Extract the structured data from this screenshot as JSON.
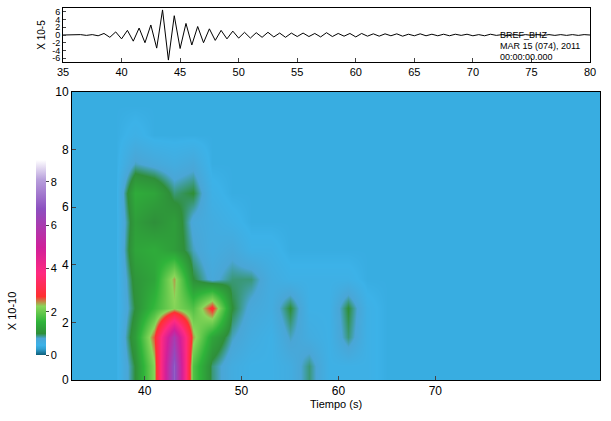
{
  "chart_data": [
    {
      "type": "line",
      "x": [
        35,
        35.5,
        36,
        36.5,
        37,
        37.5,
        38,
        38.5,
        39,
        39.5,
        40,
        40.5,
        41,
        41.5,
        42,
        42.5,
        43,
        43.5,
        44,
        44.5,
        45,
        45.5,
        46,
        46.5,
        47,
        47.5,
        48,
        48.5,
        49,
        49.5,
        50,
        50.5,
        51,
        51.5,
        52,
        52.5,
        53,
        53.5,
        54,
        54.5,
        55,
        55.5,
        56,
        56.5,
        57,
        57.5,
        58,
        58.5,
        59,
        59.5,
        60,
        60.5,
        61,
        61.5,
        62,
        62.5,
        63,
        63.5,
        64,
        64.5,
        65,
        65.5,
        66,
        66.5,
        67,
        67.5,
        68,
        68.5,
        69,
        69.5,
        70,
        70.5,
        71,
        71.5,
        72,
        72.5,
        73,
        73.5,
        74,
        74.5,
        75,
        75.5,
        76,
        76.5,
        77,
        77.5,
        78,
        78.5,
        79,
        79.5,
        80
      ],
      "values": [
        0,
        0,
        0,
        0.1,
        -0.1,
        0.1,
        -0.2,
        0.4,
        -0.6,
        0.8,
        -1.0,
        1.2,
        -1.6,
        1.8,
        -2.0,
        2.6,
        -3.4,
        6.5,
        -6.5,
        5.0,
        -3.5,
        3.0,
        -2.6,
        2.2,
        -2.0,
        1.6,
        -1.4,
        1.2,
        -1.0,
        1.0,
        -0.8,
        0.7,
        -0.8,
        0.6,
        -0.6,
        0.7,
        -0.5,
        0.5,
        -0.6,
        0.5,
        -0.4,
        0.5,
        -0.4,
        0.4,
        -0.5,
        0.6,
        -0.4,
        0.4,
        -0.3,
        0.4,
        -0.5,
        0.4,
        -0.3,
        0.3,
        -0.3,
        0.3,
        -0.2,
        0.3,
        -0.3,
        0.2,
        -0.2,
        0.3,
        -0.2,
        0.2,
        -0.2,
        0.2,
        -0.2,
        0.2,
        -0.1,
        0.2,
        -0.2,
        0.1,
        -0.2,
        0.2,
        -0.1,
        0.1,
        -0.2,
        0.1,
        -0.1,
        0.1,
        -0.1,
        0.1,
        -0.1,
        0.1,
        -0.1,
        0.1,
        -0.1,
        0.1,
        -0.1,
        0.1,
        0
      ],
      "color": "#000000",
      "xlim": [
        35,
        80
      ],
      "xticks": [
        35,
        40,
        45,
        50,
        55,
        60,
        65,
        70,
        75,
        80
      ],
      "ylim": [
        -7,
        7
      ],
      "yticks": [
        -6,
        -4,
        -2,
        0,
        2,
        4,
        6
      ],
      "y_label": "X 10-5",
      "annotations": [
        "BREF_BHZ",
        "MAR 15 (074), 2011",
        "00:00:00.000"
      ]
    },
    {
      "type": "heatmap",
      "x": [
        33,
        35,
        37,
        39,
        41,
        43,
        45,
        47,
        49,
        51,
        53,
        55,
        57,
        59,
        61,
        63,
        65,
        67,
        69,
        71,
        73,
        75,
        77,
        79,
        81,
        83,
        85,
        87
      ],
      "y": [
        0.5,
        1.5,
        2.5,
        3.5,
        4.5,
        5.5,
        6.5,
        7.5,
        8.5,
        9.5
      ],
      "z": [
        [
          0.4,
          0.4,
          0.4,
          1.0,
          2.2,
          7.0,
          1.8,
          0.9,
          0.6,
          0.5,
          0.5,
          0.6,
          0.9,
          0.5,
          0.5,
          0.5,
          0.4,
          0.4,
          0.4,
          0.4,
          0.4,
          0.4,
          0.4,
          0.4,
          0.4,
          0.4,
          0.4,
          0.4
        ],
        [
          0.4,
          0.4,
          0.4,
          1.2,
          2.6,
          6.0,
          2.4,
          1.3,
          0.8,
          0.6,
          0.5,
          0.8,
          0.6,
          0.5,
          0.9,
          0.5,
          0.4,
          0.4,
          0.4,
          0.4,
          0.4,
          0.4,
          0.4,
          0.4,
          0.4,
          0.4,
          0.4,
          0.4
        ],
        [
          0.4,
          0.4,
          0.4,
          1.0,
          1.6,
          2.2,
          1.8,
          2.8,
          1.0,
          0.7,
          0.6,
          1.0,
          0.5,
          0.5,
          1.0,
          0.5,
          0.4,
          0.4,
          0.4,
          0.4,
          0.4,
          0.4,
          0.4,
          0.4,
          0.4,
          0.4,
          0.4,
          0.4
        ],
        [
          0.4,
          0.4,
          0.4,
          1.1,
          1.3,
          2.4,
          1.0,
          0.7,
          0.9,
          0.9,
          0.6,
          0.5,
          0.5,
          0.5,
          0.5,
          0.4,
          0.4,
          0.4,
          0.4,
          0.4,
          0.4,
          0.4,
          0.4,
          0.4,
          0.4,
          0.4,
          0.4,
          0.4
        ],
        [
          0.4,
          0.4,
          0.4,
          1.3,
          1.4,
          1.2,
          0.8,
          0.6,
          0.7,
          0.5,
          0.5,
          0.4,
          0.4,
          0.4,
          0.4,
          0.4,
          0.4,
          0.4,
          0.4,
          0.4,
          0.4,
          0.4,
          0.4,
          0.4,
          0.4,
          0.4,
          0.4,
          0.4
        ],
        [
          0.4,
          0.4,
          0.4,
          1.2,
          1.0,
          1.2,
          0.7,
          0.6,
          0.5,
          0.4,
          0.4,
          0.4,
          0.4,
          0.4,
          0.4,
          0.4,
          0.4,
          0.4,
          0.4,
          0.4,
          0.4,
          0.4,
          0.4,
          0.4,
          0.4,
          0.4,
          0.4,
          0.4
        ],
        [
          0.4,
          0.4,
          0.4,
          1.4,
          1.3,
          0.9,
          1.0,
          0.5,
          0.4,
          0.4,
          0.4,
          0.4,
          0.4,
          0.4,
          0.4,
          0.4,
          0.4,
          0.4,
          0.4,
          0.4,
          0.4,
          0.4,
          0.4,
          0.4,
          0.4,
          0.4,
          0.4,
          0.4
        ],
        [
          0.4,
          0.4,
          0.4,
          0.8,
          0.7,
          0.6,
          0.7,
          0.4,
          0.4,
          0.4,
          0.4,
          0.4,
          0.4,
          0.4,
          0.4,
          0.4,
          0.4,
          0.4,
          0.4,
          0.4,
          0.4,
          0.4,
          0.4,
          0.4,
          0.4,
          0.4,
          0.4,
          0.4
        ],
        [
          0.4,
          0.4,
          0.4,
          0.5,
          0.4,
          0.4,
          0.4,
          0.4,
          0.4,
          0.4,
          0.4,
          0.4,
          0.4,
          0.4,
          0.4,
          0.4,
          0.4,
          0.4,
          0.4,
          0.4,
          0.4,
          0.4,
          0.4,
          0.4,
          0.4,
          0.4,
          0.4,
          0.4
        ],
        [
          0.4,
          0.4,
          0.4,
          0.4,
          0.4,
          0.4,
          0.4,
          0.4,
          0.4,
          0.4,
          0.4,
          0.4,
          0.4,
          0.4,
          0.4,
          0.4,
          0.4,
          0.4,
          0.4,
          0.4,
          0.4,
          0.4,
          0.4,
          0.4,
          0.4,
          0.4,
          0.4,
          0.4
        ]
      ],
      "xlim": [
        32.5,
        87
      ],
      "xticks": [
        40,
        50,
        60,
        70
      ],
      "ylim": [
        0,
        10
      ],
      "yticks": [
        0,
        2,
        4,
        6,
        8,
        10
      ],
      "x_label": "Tiempo (s)",
      "colorbar": {
        "label": "X 10-10",
        "range": [
          0,
          9
        ],
        "ticks": [
          0,
          2,
          4,
          6,
          8
        ]
      }
    }
  ]
}
